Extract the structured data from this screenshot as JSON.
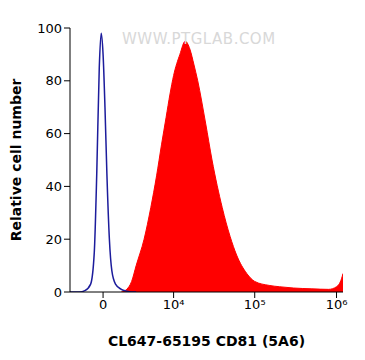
{
  "chart_data": {
    "type": "area",
    "xlabel": "CL647-65195 CD81 (5A6)",
    "ylabel": "Relative cell number",
    "annotations": [
      "WWW.PTGLAB.COM"
    ],
    "log": "x",
    "grid": false,
    "xlim": [
      -3000,
      1200000
    ],
    "xticks": [
      0,
      {
        "value": 10000,
        "label": "10⁴"
      },
      {
        "value": 100000,
        "label": "10⁵"
      },
      {
        "value": 1000000,
        "label": "10⁶"
      }
    ],
    "ylim": [
      0,
      100
    ],
    "yticks": [
      0,
      20,
      40,
      60,
      80,
      100
    ],
    "x": [
      -3000,
      -2000,
      -1500,
      -1000,
      -700,
      -500,
      -300,
      -150,
      0,
      150,
      300,
      500,
      700,
      1000,
      1500,
      2000,
      2500,
      3000,
      4000,
      5000,
      6000,
      7000,
      8000,
      9000,
      10000,
      12000,
      14000,
      16000,
      18000,
      20000,
      25000,
      30000,
      40000,
      50000,
      60000,
      80000,
      100000,
      150000,
      200000,
      300000,
      500000,
      800000,
      1000000,
      1150000,
      1200000
    ],
    "series": [
      {
        "type": "line",
        "color": "#1c1c9c",
        "values": [
          0,
          0,
          0.5,
          3,
          15,
          45,
          85,
          98,
          90,
          70,
          45,
          20,
          8,
          3,
          1,
          0.3,
          0,
          0,
          null,
          null,
          null,
          null,
          null,
          null,
          null,
          null,
          null,
          null,
          null,
          null,
          null,
          null,
          null,
          null,
          null,
          null,
          null,
          null,
          null,
          null,
          null,
          null,
          null,
          null,
          null
        ]
      },
      {
        "type": "area",
        "color": "#ff0000",
        "values": [
          null,
          null,
          null,
          null,
          null,
          null,
          null,
          null,
          null,
          null,
          null,
          null,
          null,
          null,
          0,
          1,
          4,
          10,
          20,
          32,
          44,
          56,
          66,
          75,
          82,
          90,
          95,
          92,
          86,
          80,
          64,
          50,
          32,
          21,
          14,
          7,
          4,
          2.5,
          2,
          1.5,
          1.2,
          1,
          2,
          5,
          7
        ]
      }
    ]
  }
}
